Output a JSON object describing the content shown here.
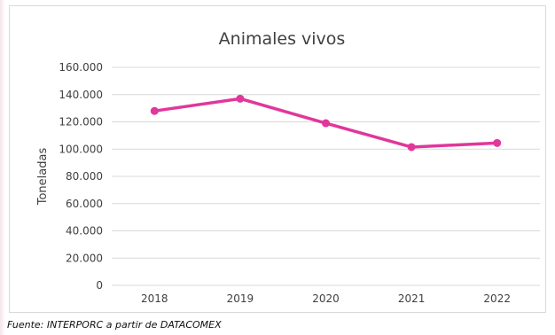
{
  "chart_data": {
    "type": "line",
    "title": "Animales vivos",
    "ylabel": "Toneladas",
    "xlabel": "",
    "categories": [
      "2018",
      "2019",
      "2020",
      "2021",
      "2022"
    ],
    "series": [
      {
        "values": [
          128000,
          137000,
          119000,
          101500,
          104500
        ]
      }
    ],
    "ylim": [
      0,
      160000
    ],
    "yticks": [
      0,
      20000,
      40000,
      60000,
      80000,
      100000,
      120000,
      140000,
      160000
    ],
    "ytick_labels": [
      "0",
      "20.000",
      "40.000",
      "60.000",
      "80.000",
      "100.000",
      "120.000",
      "140.000",
      "160.000"
    ],
    "grid": true,
    "legend": "none",
    "line_color": "#e0379b"
  },
  "source_note": "Fuente: INTERPORC  a partir de DATACOMEX"
}
